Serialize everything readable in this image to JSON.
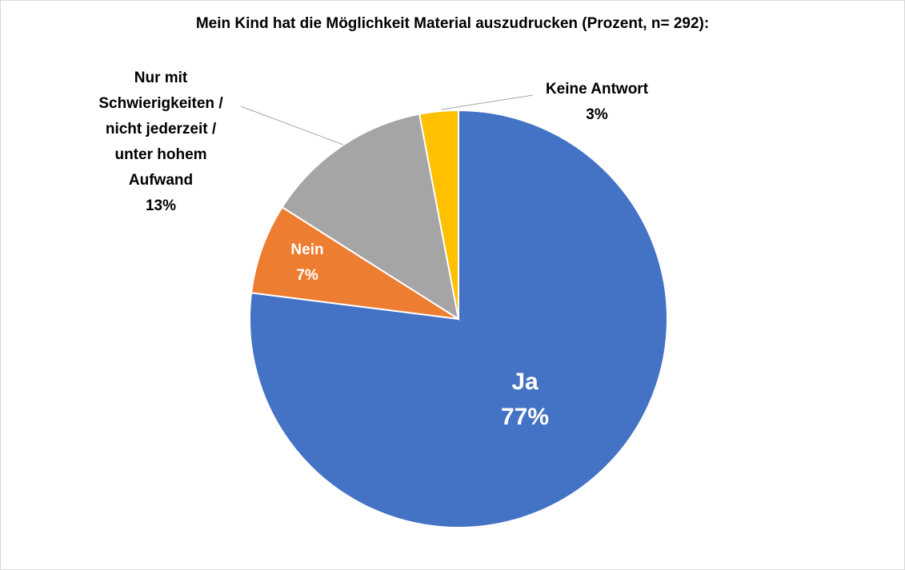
{
  "chart_data": {
    "type": "pie",
    "title": "Mein Kind hat die Möglichkeit Material auszudrucken (Prozent, n= 292):",
    "categories": [
      "Ja",
      "Nein",
      "Nur mit Schwierigkeiten / nicht jederzeit / unter hohem Aufwand",
      "Keine Antwort"
    ],
    "values": [
      77,
      7,
      13,
      3
    ],
    "value_labels": [
      "77%",
      "7%",
      "13%",
      "3%"
    ],
    "colors": [
      "#4472c4",
      "#ed7d31",
      "#a5a5a5",
      "#ffc000"
    ]
  }
}
